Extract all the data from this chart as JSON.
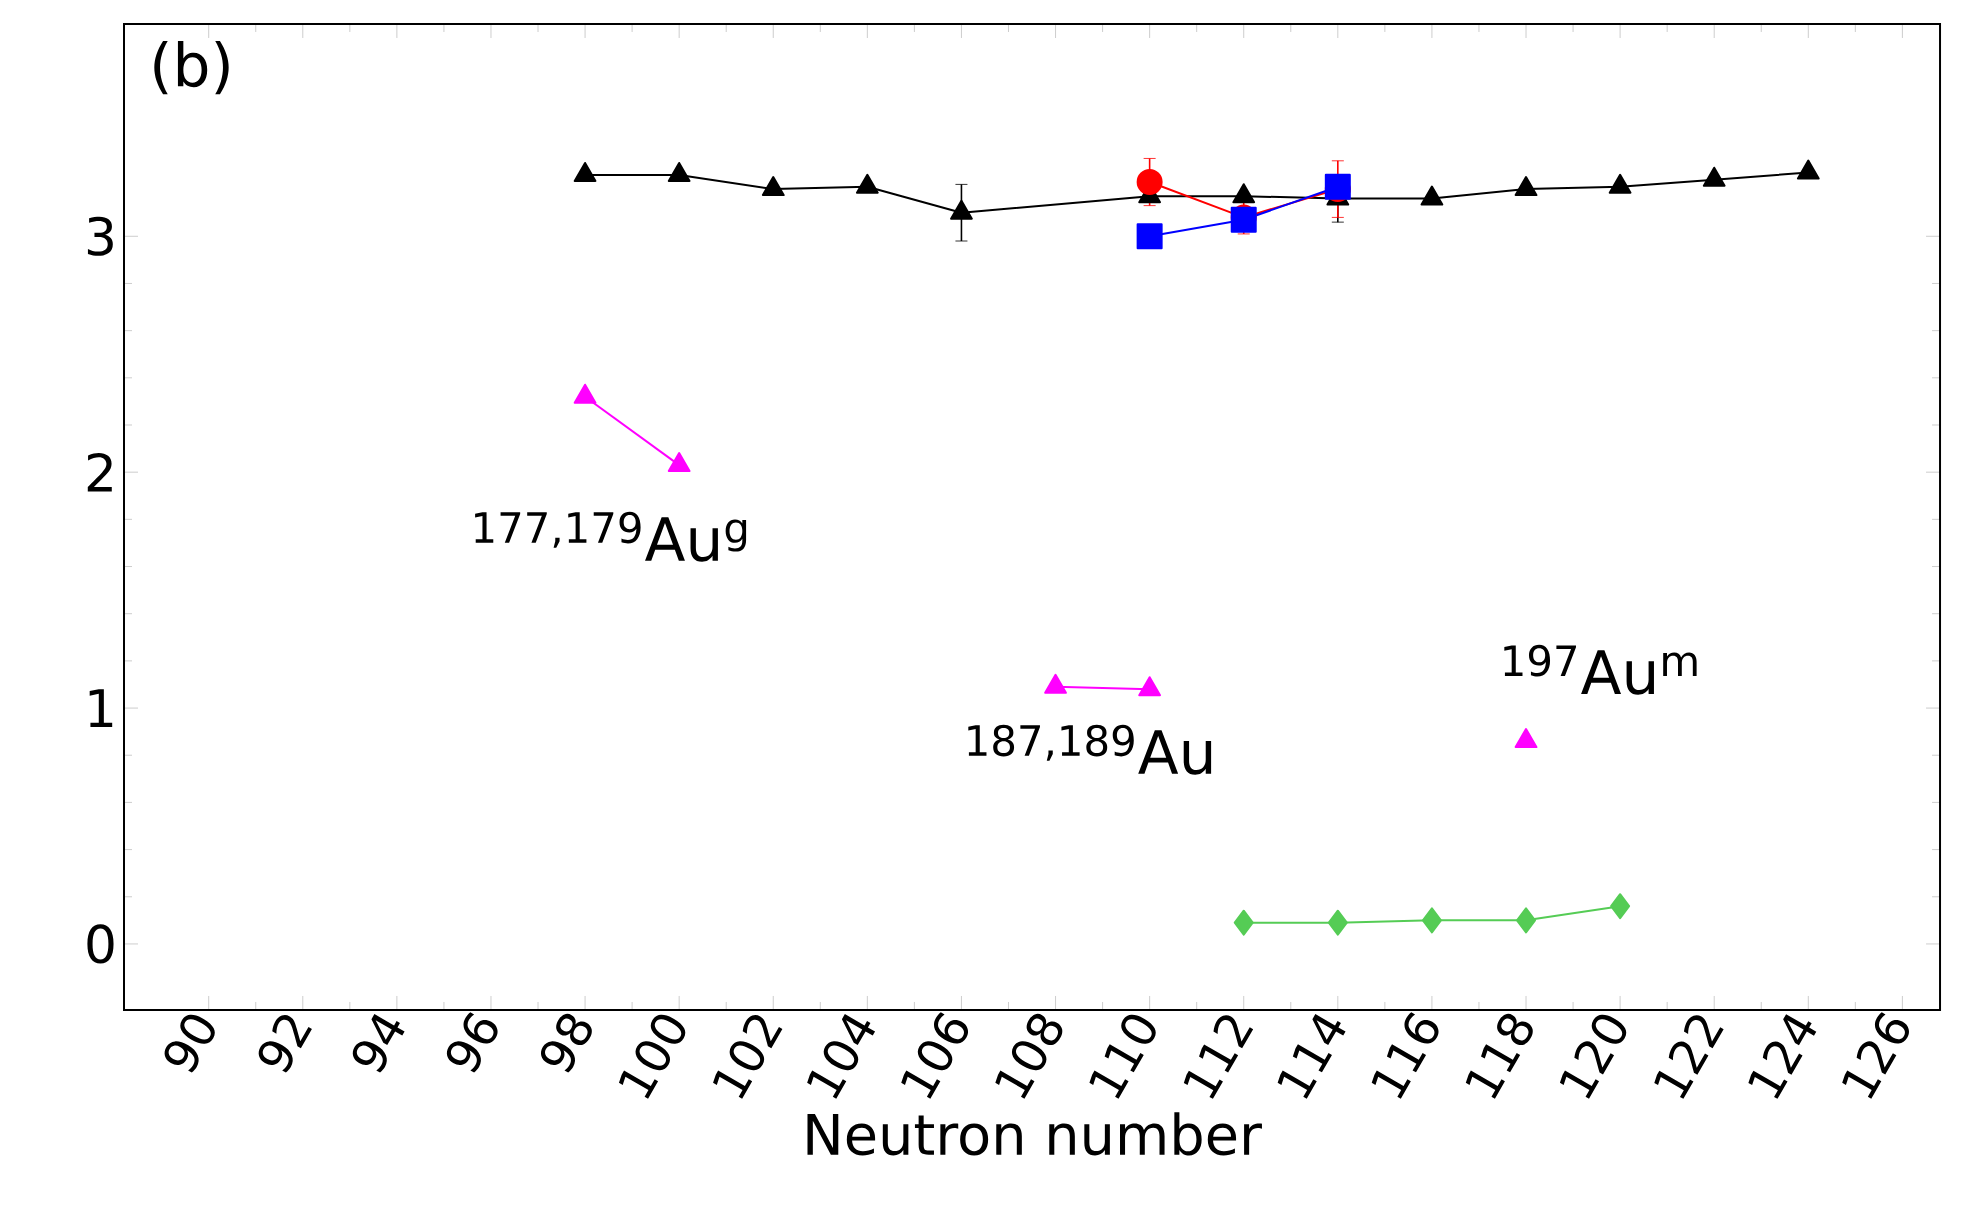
{
  "chart_data": {
    "type": "line",
    "xlabel": "Neutron number",
    "xlim": [
      88.2,
      126.8
    ],
    "ylim": [
      -0.28,
      3.9
    ],
    "xticks": [
      90,
      92,
      94,
      96,
      98,
      100,
      102,
      104,
      106,
      108,
      110,
      112,
      114,
      116,
      118,
      120,
      122,
      124,
      126
    ],
    "yticks": [
      0,
      1,
      2,
      3
    ],
    "grid": false,
    "line_style": "solid",
    "series": [
      {
        "color": "#000000",
        "marker": "triangle",
        "x": [
          98,
          100,
          102,
          104,
          106,
          110,
          112,
          114,
          116,
          118,
          120,
          122,
          124
        ],
        "values": [
          3.26,
          3.26,
          3.2,
          3.21,
          3.1,
          3.17,
          3.17,
          3.16,
          3.16,
          3.2,
          3.21,
          3.24,
          3.27
        ],
        "errors": [
          null,
          null,
          null,
          null,
          0.12,
          null,
          null,
          0.1,
          null,
          null,
          null,
          null,
          null
        ]
      },
      {
        "color": "#ff0000",
        "marker": "circle",
        "x": [
          110,
          112,
          114
        ],
        "values": [
          3.23,
          3.08,
          3.2
        ],
        "errors": [
          0.1,
          0.07,
          0.12
        ]
      },
      {
        "color": "#0000ff",
        "marker": "square",
        "x": [
          110,
          112,
          114
        ],
        "values": [
          3.0,
          3.07,
          3.21
        ]
      },
      {
        "color": "#ff00ff",
        "marker": "triangle",
        "x": [
          98,
          100
        ],
        "values": [
          2.32,
          2.03
        ]
      },
      {
        "color": "#ff00ff",
        "marker": "triangle",
        "x": [
          108,
          110
        ],
        "values": [
          1.09,
          1.08
        ]
      },
      {
        "color": "#ff00ff",
        "marker": "triangle",
        "type": "scatter",
        "x": [
          118
        ],
        "values": [
          0.86
        ]
      },
      {
        "color": "#55cc55",
        "marker": "diamond",
        "x": [
          112,
          114,
          116,
          118,
          120
        ],
        "values": [
          0.09,
          0.09,
          0.1,
          0.1,
          0.16
        ]
      }
    ],
    "annotations": [
      "(b)",
      "$^{177,179}$Au$^{g}$",
      "$^{187,189}$Au",
      "$^{197}$Au$^{m}$"
    ]
  }
}
